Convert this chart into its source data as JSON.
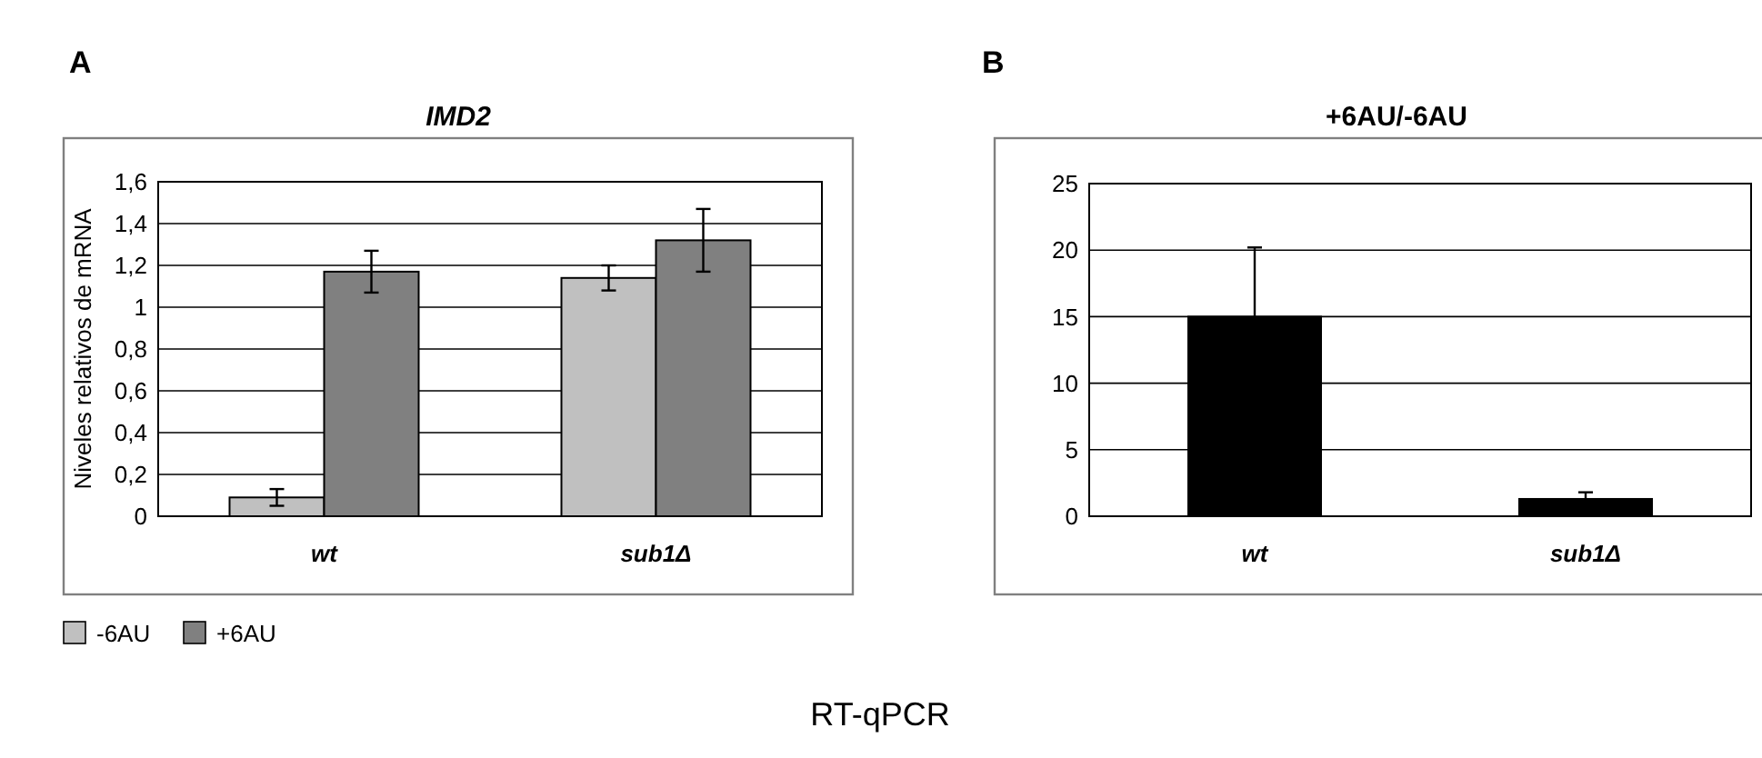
{
  "chart_data": [
    {
      "type": "bar",
      "title": "IMD2",
      "ylabel": "Niveles relativos de mRNA",
      "categories": [
        "wt",
        "sub1Δ"
      ],
      "series": [
        {
          "name": "-6AU",
          "color": "#c0c0c0",
          "values": [
            0.09,
            1.14
          ],
          "errors": [
            0.04,
            0.06
          ]
        },
        {
          "name": "+6AU",
          "color": "#808080",
          "values": [
            1.17,
            1.32
          ],
          "errors": [
            0.1,
            0.15
          ]
        }
      ],
      "ylim": [
        0,
        1.6
      ],
      "yticks": [
        0,
        {
          "value": 0.2,
          "label": "0,2"
        },
        {
          "value": 0.4,
          "label": "0,4"
        },
        {
          "value": 0.6,
          "label": "0,6"
        },
        {
          "value": 0.8,
          "label": "0,8"
        },
        1,
        {
          "value": 1.2,
          "label": "1,2"
        },
        {
          "value": 1.4,
          "label": "1,4"
        },
        {
          "value": 1.6,
          "label": "1,6"
        }
      ],
      "grid": "y",
      "legend": "bottom left",
      "annotations": [
        "A",
        "RT-qPCR"
      ]
    },
    {
      "type": "bar",
      "title": "+6AU/-6AU",
      "categories": [
        "wt",
        "sub1Δ"
      ],
      "series": [
        {
          "color": "#000000",
          "values": [
            15,
            1.3
          ],
          "errors": [
            [
              15,
              20.2
            ],
            [
              1.3,
              1.8
            ]
          ]
        }
      ],
      "ylim": [
        0,
        25
      ],
      "yticks": [
        0,
        5,
        10,
        15,
        20,
        25
      ],
      "grid": "y",
      "annotations": [
        "B"
      ]
    }
  ]
}
